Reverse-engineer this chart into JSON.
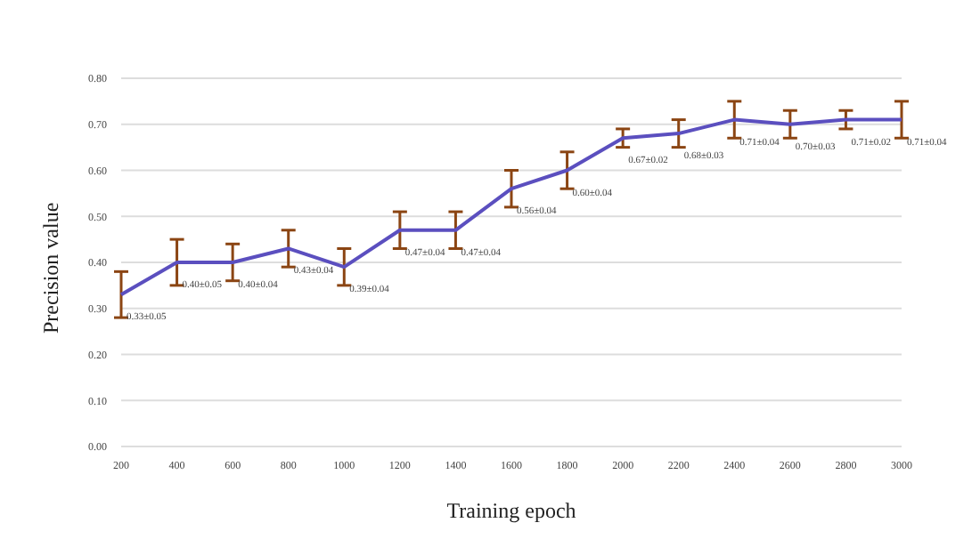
{
  "chart_data": {
    "type": "line",
    "xlabel": "Training  epoch",
    "ylabel": "Precision value",
    "categories": [
      "200",
      "400",
      "600",
      "800",
      "1000",
      "1200",
      "1400",
      "1600",
      "1800",
      "2000",
      "2200",
      "2400",
      "2600",
      "2800",
      "3000"
    ],
    "series": [
      {
        "color": "#5b4fbf",
        "values": [
          0.33,
          0.4,
          0.4,
          0.43,
          0.39,
          0.47,
          0.47,
          0.56,
          0.6,
          0.67,
          0.68,
          0.71,
          0.7,
          0.71,
          0.71
        ],
        "errors": [
          0.05,
          0.05,
          0.04,
          0.04,
          0.04,
          0.04,
          0.04,
          0.04,
          0.04,
          0.02,
          0.03,
          0.04,
          0.03,
          0.02,
          0.04
        ],
        "value_labels": [
          "0.33±0.05",
          "0.40±0.05",
          "0.40±0.04",
          "0.43±0.04",
          "0.39±0.04",
          "0.47±0.04",
          "0.47±0.04",
          "0.56±0.04",
          "0.60±0.04",
          "0.67±0.02",
          "0.68±0.03",
          "0.71±0.04",
          "0.70±0.03",
          "0.71±0.02",
          "0.71±0.04"
        ]
      }
    ],
    "ylim": [
      0,
      0.8
    ],
    "yticks": [
      {
        "value": 0,
        "label": "0.00"
      },
      {
        "value": 0.1,
        "label": "0.10"
      },
      {
        "value": 0.2,
        "label": "0.20"
      },
      {
        "value": 0.3,
        "label": "0.30"
      },
      {
        "value": 0.4,
        "label": "0.40"
      },
      {
        "value": 0.5,
        "label": "0.50"
      },
      {
        "value": 0.6,
        "label": "0.60"
      },
      {
        "value": 0.7,
        "label": "0.70"
      },
      {
        "value": 0.8,
        "label": "0.80"
      }
    ],
    "grid": "y",
    "marker": "none",
    "line_style": "solid"
  }
}
